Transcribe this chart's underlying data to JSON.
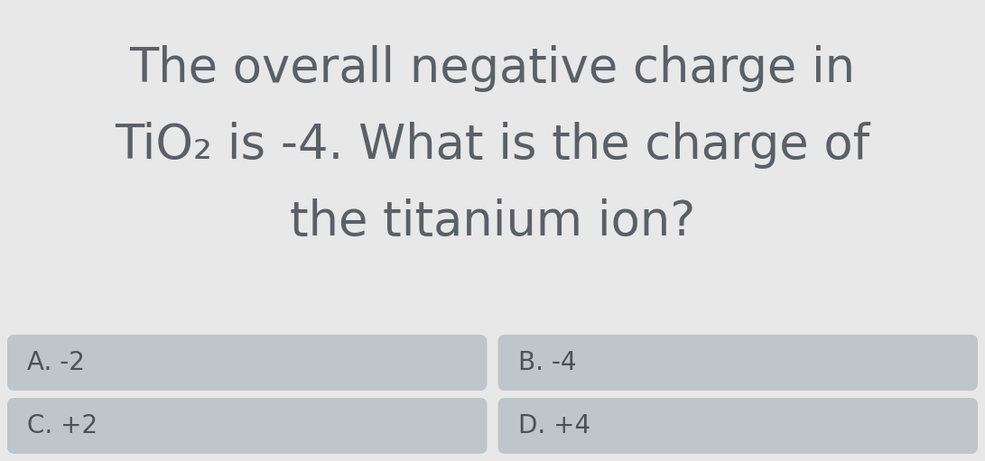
{
  "bg_color": "#e8e8e8",
  "question_line1": "The overall negative charge in",
  "question_line2": "TiO₂ is -4. What is the charge of",
  "question_line3": "the titanium ion?",
  "options": [
    "A. -2",
    "B. -4",
    "C. +2",
    "D. +4"
  ],
  "option_bg": "#bec5cb",
  "text_color": "#4a5258",
  "question_color": "#5a6068",
  "font_size_question": 38,
  "font_size_options": 20,
  "divider_color": "#cccccc",
  "fig_width": 10.91,
  "fig_height": 5.11,
  "dpi": 100
}
